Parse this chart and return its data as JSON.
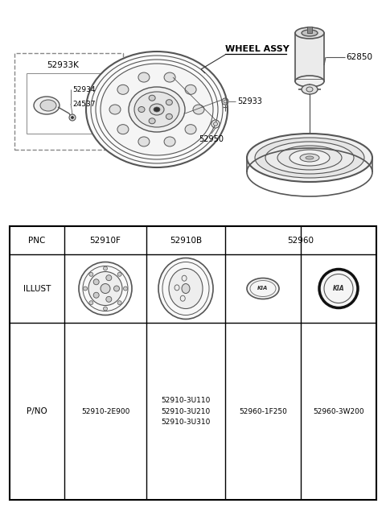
{
  "bg_color": "#ffffff",
  "colors": {
    "line": "#555555",
    "dark": "#333333",
    "light_fill": "#f0f0f0",
    "mid_fill": "#d8d8d8",
    "dark_fill": "#b0b0b0",
    "table_line": "#000000",
    "text": "#000000"
  },
  "table": {
    "pnc_headers": [
      "PNC",
      "52910F",
      "52910B",
      "52960"
    ],
    "row_labels": [
      "ILLUST",
      "P/NO"
    ],
    "pno_values": [
      "52910-2E900",
      "52910-3U110\n52910-3U210\n52910-3U310",
      "52960-1F250",
      "52960-3W200"
    ]
  },
  "labels": {
    "inset_title": "52933K",
    "label1": "52934",
    "label2": "24537",
    "wheel_assy": "WHEEL ASSY",
    "l52933": "52933",
    "l52950": "52950",
    "l62850": "62850"
  }
}
